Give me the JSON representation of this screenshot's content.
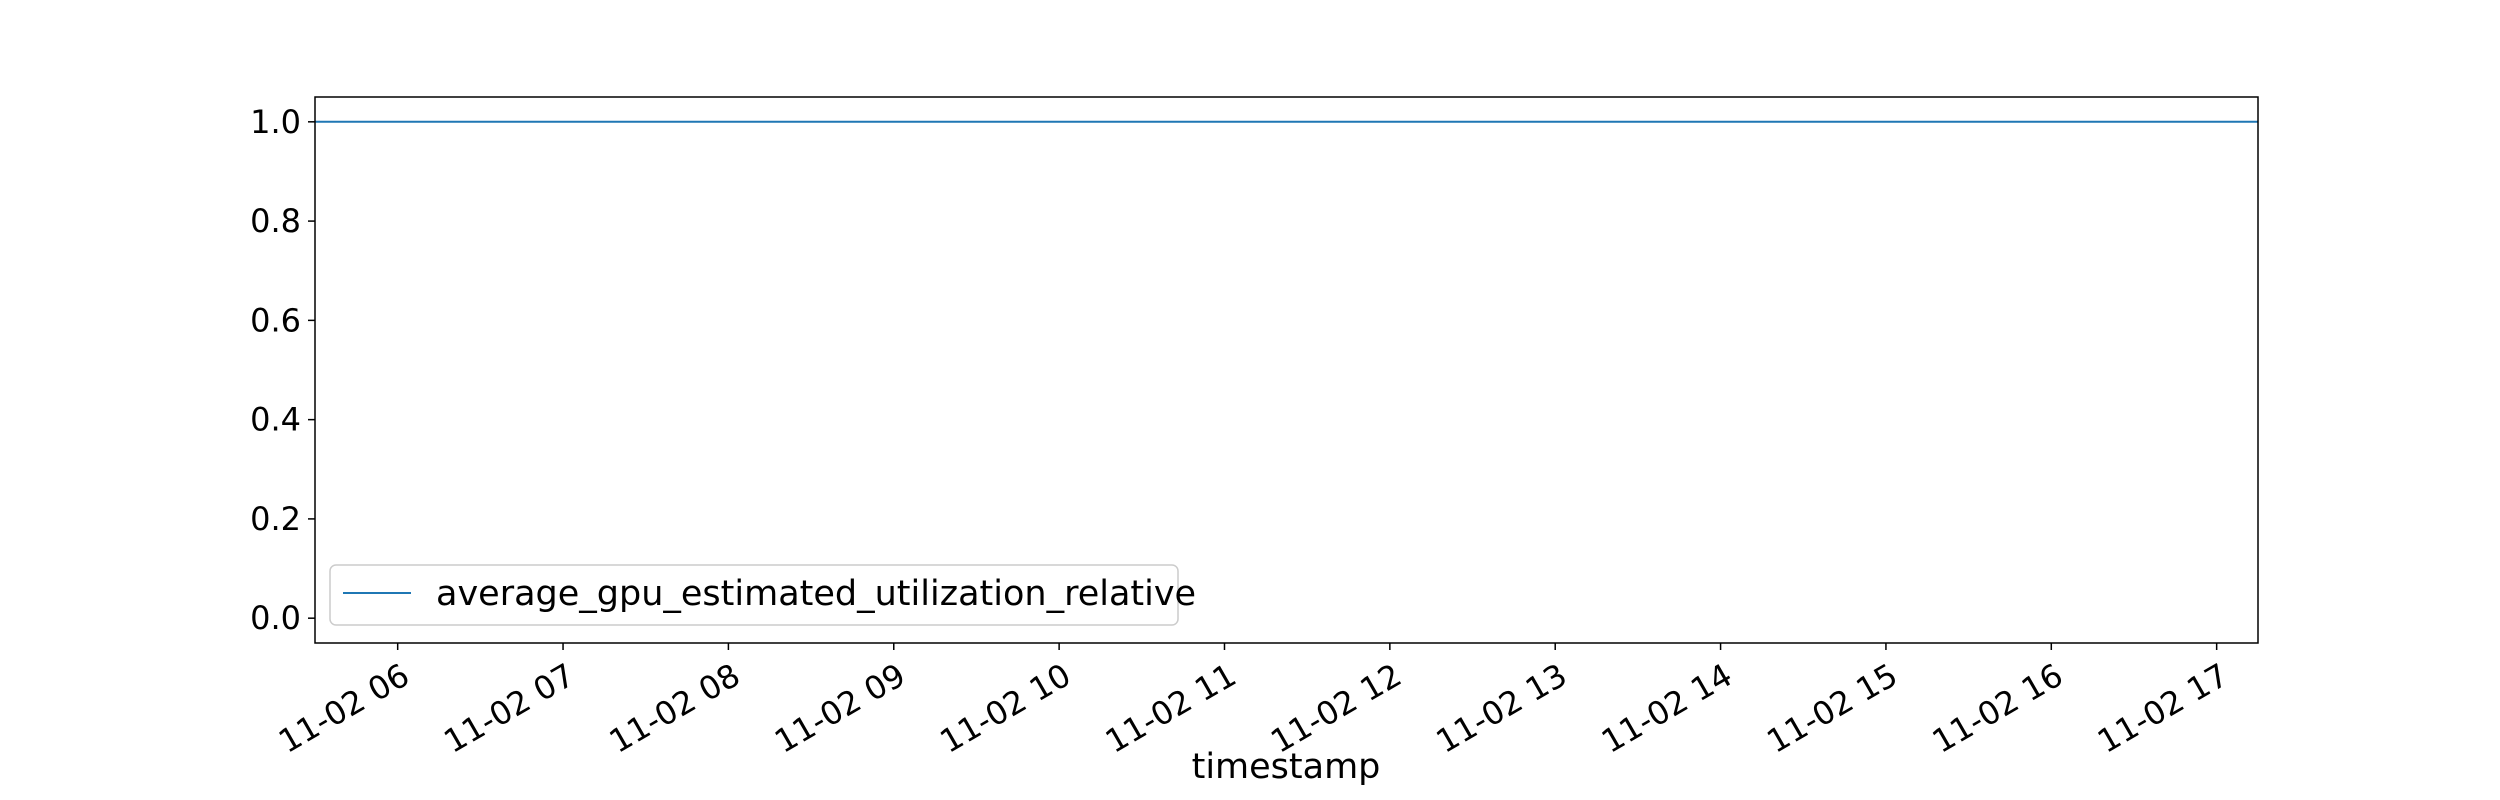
{
  "chart_data": {
    "type": "line",
    "title": "",
    "xlabel": "timestamp",
    "ylabel": "",
    "x_tick_labels": [
      "11-02 06",
      "11-02 07",
      "11-02 08",
      "11-02 09",
      "11-02 10",
      "11-02 11",
      "11-02 12",
      "11-02 13",
      "11-02 14",
      "11-02 15",
      "11-02 16",
      "11-02 17"
    ],
    "y_tick_labels": [
      "0.0",
      "0.2",
      "0.4",
      "0.6",
      "0.8",
      "1.0"
    ],
    "y_ticks": [
      0.0,
      0.2,
      0.4,
      0.6,
      0.8,
      1.0
    ],
    "ylim": [
      -0.05,
      1.05
    ],
    "xlim_hours": [
      5.5,
      17.25
    ],
    "grid": false,
    "legend": {
      "placement": "lower-left"
    },
    "series": [
      {
        "name": "average_gpu_estimated_utilization_relative",
        "color": "#1f77b4",
        "x": [
          "11-02 05:30",
          "11-02 17:15"
        ],
        "y": [
          1.0,
          1.0
        ]
      }
    ]
  }
}
